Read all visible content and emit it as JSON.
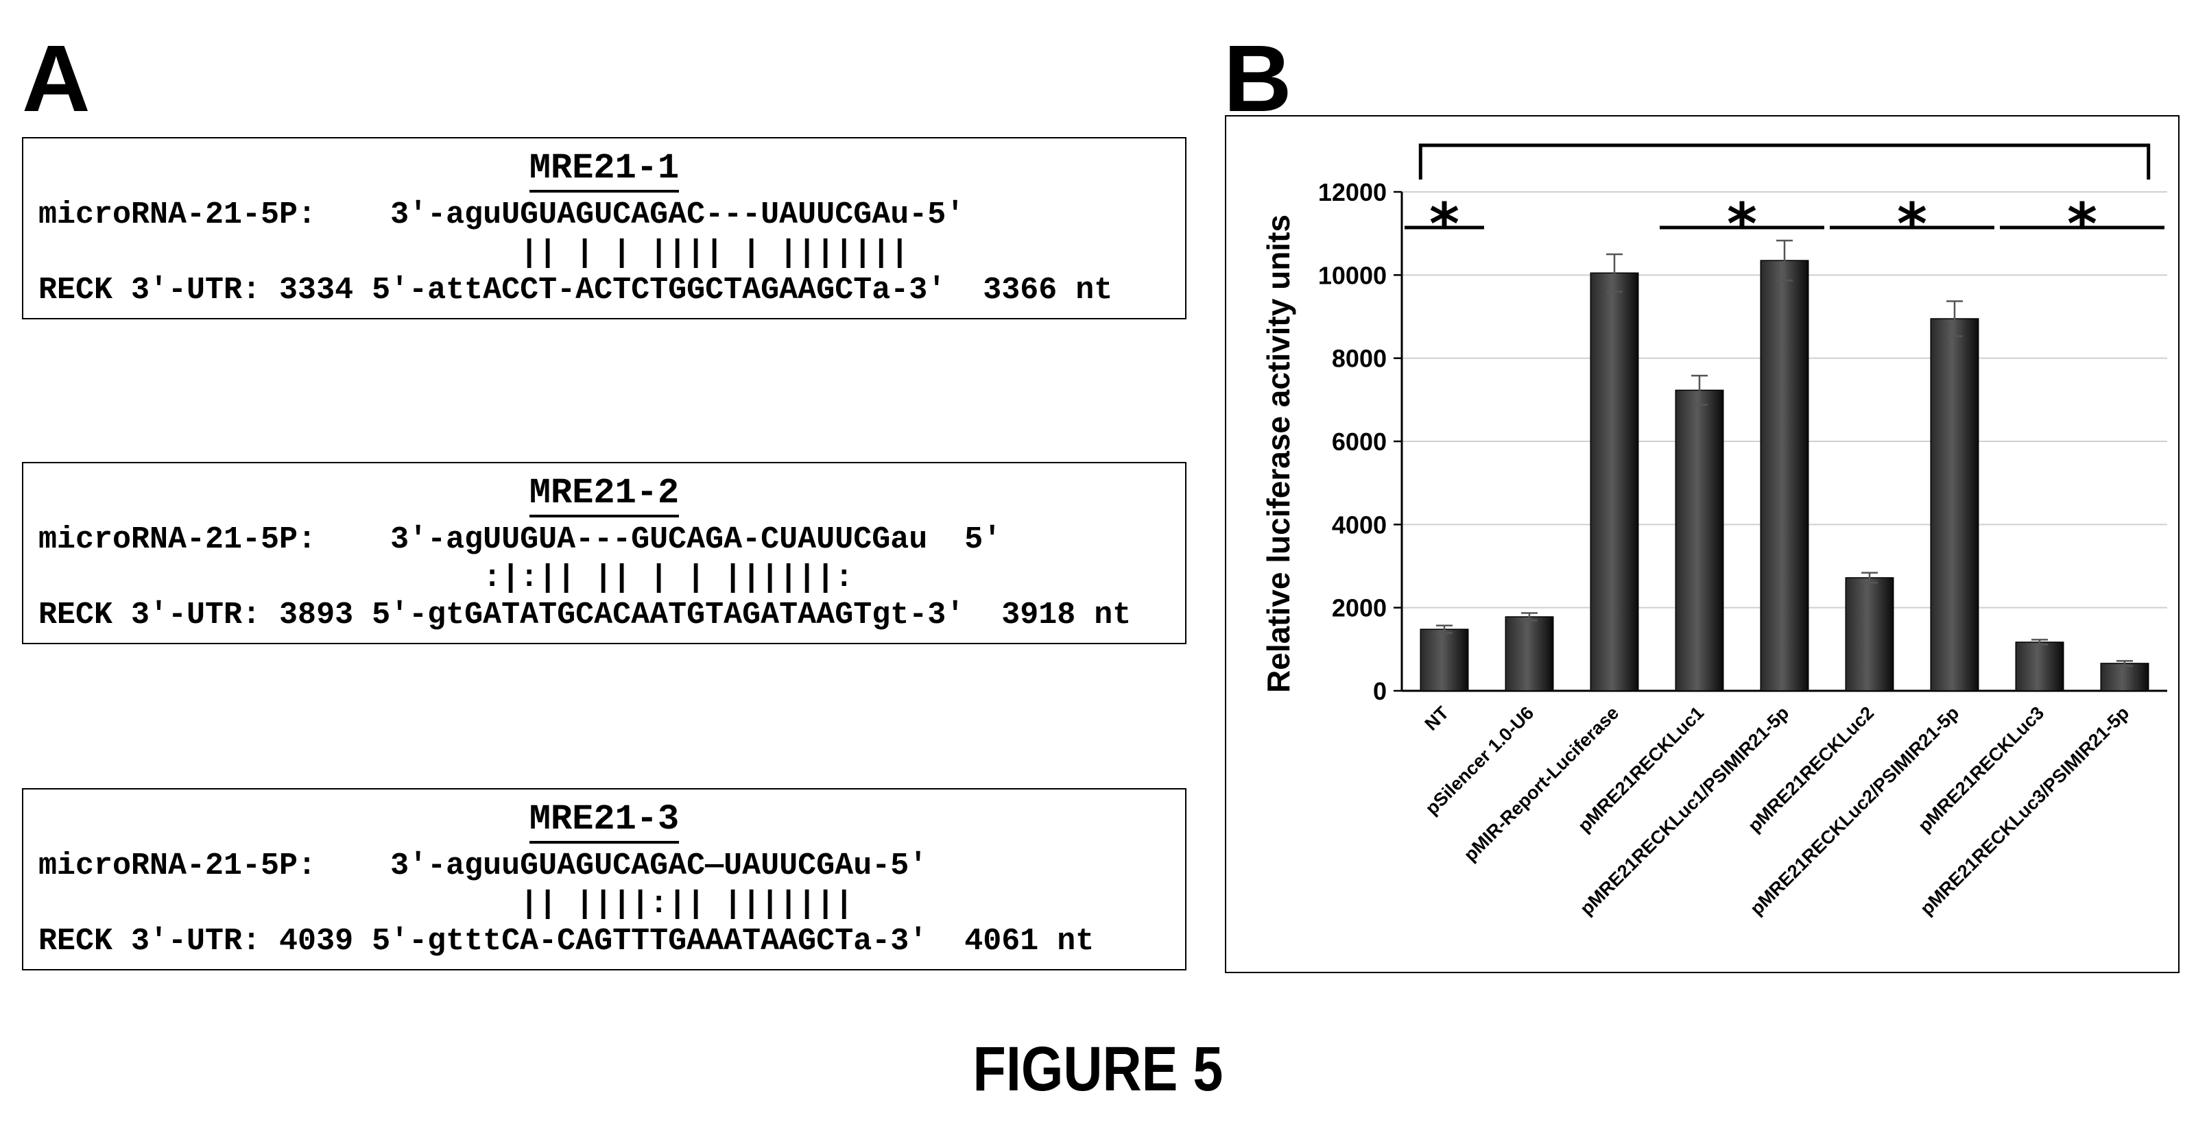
{
  "panel_a": {
    "letter": "A",
    "boxes": [
      {
        "title": "MRE21-1",
        "mirna_line": "microRNA-21-5P:    3′-aguUGUAGUCAGAC---UAUUCGAu-5′",
        "pairing_line": "                          || | | |||| | |||||||",
        "utr_line": "RECK 3′-UTR: 3334 5′-attACCT-ACTCTGGCTAGAAGCTa-3′  3366 nt"
      },
      {
        "title": "MRE21-2",
        "mirna_line": "microRNA-21-5P:    3′-agUUGUA---GUCAGA-CUAUUCGau  5′",
        "pairing_line": "                        :|:|| || | | ||||||:",
        "utr_line": "RECK 3′-UTR: 3893 5′-gtGATATGCACAATGTAGATAAGTgt-3′  3918 nt"
      },
      {
        "title": "MRE21-3",
        "mirna_line": "microRNA-21-5P:    3′-aguuGUAGUCAGAC—UAUUCGAu-5′",
        "pairing_line": "                          || ||||:|| |||||||",
        "utr_line": "RECK 3′-UTR: 4039 5′-gtttCA-CAGTTTGAAATAAGCTa-3′  4061 nt"
      }
    ]
  },
  "panel_b": {
    "letter": "B"
  },
  "chart_data": {
    "type": "bar",
    "ylabel": "Relative luciferase activity units",
    "ylim": [
      0,
      12000
    ],
    "yticks": [
      0,
      2000,
      4000,
      6000,
      8000,
      10000,
      12000
    ],
    "grid": true,
    "categories": [
      "NT",
      "pSilencer 1.0-U6",
      "pMIR-Report-Luciferase",
      "pMRE21RECKLuc1",
      "pMRE21RECKLuc1/PSIMIR21-5p",
      "pMRE21RECKLuc2",
      "pMRE21RECKLuc2/PSIMIR21-5p",
      "pMRE21RECKLuc3",
      "pMRE21RECKLuc3/PSIMIR21-5p"
    ],
    "values": [
      1480,
      1780,
      10050,
      7230,
      10350,
      2720,
      8950,
      1170,
      660
    ],
    "errors": [
      90,
      90,
      450,
      350,
      480,
      120,
      420,
      60,
      60
    ],
    "bar_color": "#0a0a0a",
    "significance": [
      {
        "label": "*",
        "from_category": 0,
        "to_category": 0
      },
      {
        "label": "*",
        "from_category": 3,
        "to_category": 4
      },
      {
        "label": "*",
        "from_category": 5,
        "to_category": 6
      },
      {
        "label": "*",
        "from_category": 7,
        "to_category": 8
      },
      {
        "label": "",
        "from_category": 0,
        "to_category": 8,
        "type": "bracket"
      }
    ]
  },
  "caption": "FIGURE 5"
}
